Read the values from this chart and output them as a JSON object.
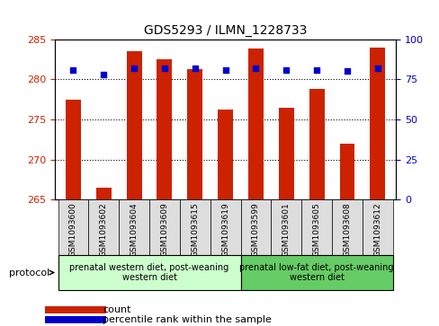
{
  "title": "GDS5293 / ILMN_1228733",
  "samples": [
    "GSM1093600",
    "GSM1093602",
    "GSM1093604",
    "GSM1093609",
    "GSM1093615",
    "GSM1093619",
    "GSM1093599",
    "GSM1093601",
    "GSM1093605",
    "GSM1093608",
    "GSM1093612"
  ],
  "count_values": [
    277.5,
    266.5,
    283.5,
    282.5,
    281.3,
    276.2,
    283.8,
    276.5,
    278.8,
    272.0,
    284.0
  ],
  "percentile_values": [
    81,
    78,
    82,
    82,
    82,
    81,
    82,
    81,
    81,
    80,
    82
  ],
  "ylim_left": [
    265,
    285
  ],
  "ylim_right": [
    0,
    100
  ],
  "yticks_left": [
    265,
    270,
    275,
    280,
    285
  ],
  "yticks_right": [
    0,
    25,
    50,
    75,
    100
  ],
  "bar_color": "#cc2200",
  "scatter_color": "#0000cc",
  "group1_label": "prenatal western diet, post-weaning\nwestern diet",
  "group2_label": "prenatal low-fat diet, post-weaning\nwestern diet",
  "group1_indices": [
    0,
    1,
    2,
    3,
    4,
    5
  ],
  "group2_indices": [
    6,
    7,
    8,
    9,
    10
  ],
  "group1_bg": "#ccffcc",
  "group2_bg": "#66cc66",
  "sample_bg": "#dddddd",
  "legend_count_color": "#cc2200",
  "legend_pct_color": "#0000cc",
  "protocol_text": "protocol",
  "xlabel": "",
  "ylabel_left": "",
  "ylabel_right": ""
}
